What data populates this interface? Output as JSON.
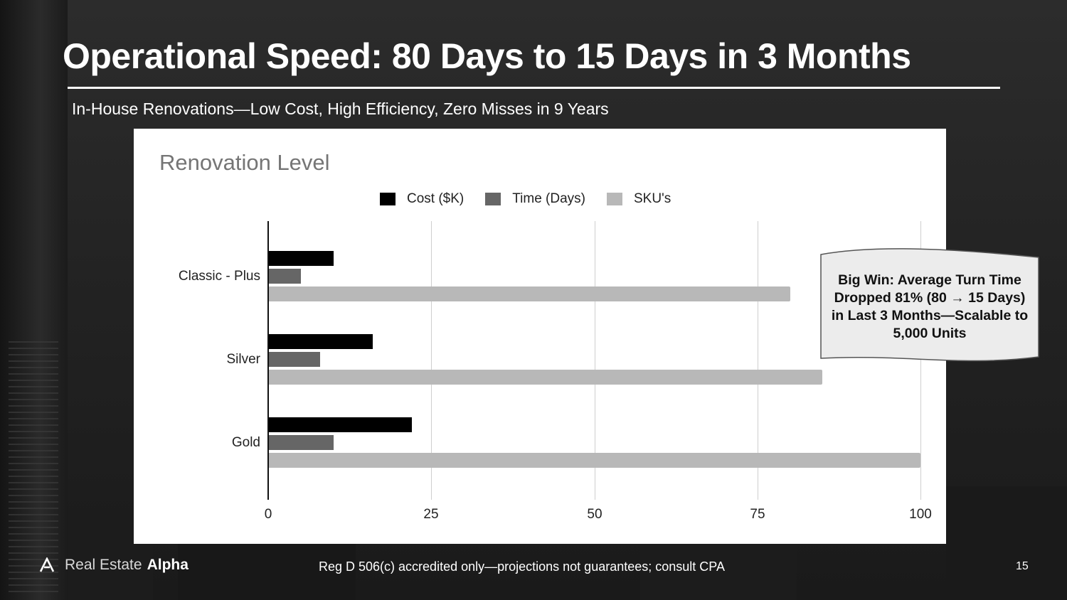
{
  "slide": {
    "title": "Operational Speed: 80 Days to 15 Days in 3 Months",
    "subtitle": "In-House Renovations—Low Cost, High Efficiency, Zero Misses in 9 Years",
    "footer": "Reg D 506(c) accredited only—projections not guarantees; consult CPA",
    "page_number": "15"
  },
  "brand": {
    "name_light": "Real Estate",
    "name_bold": "Alpha",
    "icon": "logo-a-icon"
  },
  "callout": {
    "text": "Big Win: Average Turn Time Dropped 81% (80 → 15 Days) in Last 3 Months—Scalable to 5,000 Units"
  },
  "chart_data": {
    "type": "bar",
    "orientation": "horizontal",
    "title": "Renovation Level",
    "categories": [
      "Classic - Plus",
      "Silver",
      "Gold"
    ],
    "series": [
      {
        "name": "Cost ($K)",
        "values": [
          10,
          16,
          22
        ],
        "color": "#000000"
      },
      {
        "name": "Time (Days)",
        "values": [
          5,
          8,
          10
        ],
        "color": "#666666"
      },
      {
        "name": "SKU's",
        "values": [
          80,
          85,
          100
        ],
        "color": "#b8b8b8"
      }
    ],
    "xlim": [
      0,
      100
    ],
    "ticks": [
      0,
      25,
      50,
      75,
      100
    ],
    "grid": true,
    "legend": "top"
  }
}
